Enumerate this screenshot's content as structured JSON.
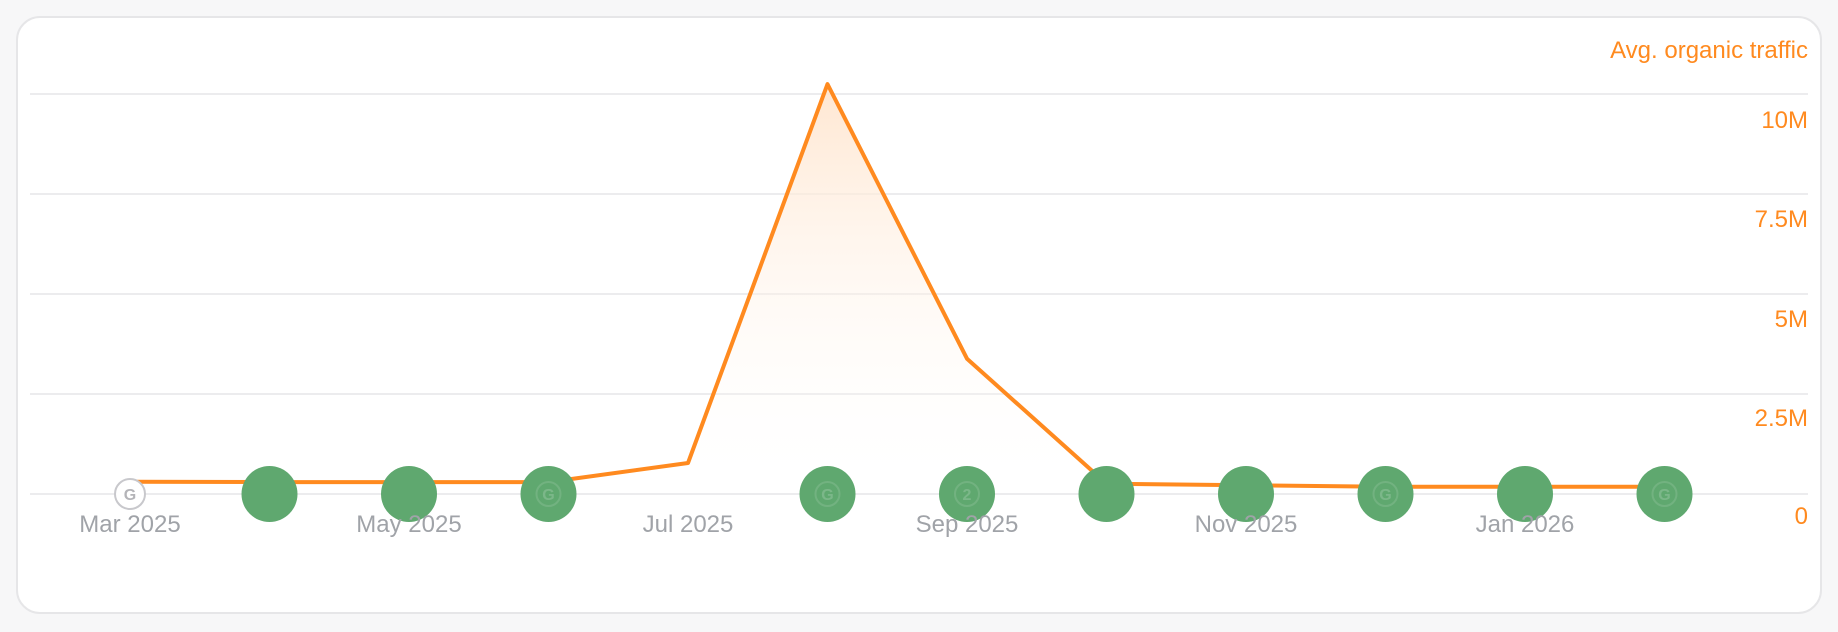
{
  "colors": {
    "line": "#ff8a1f",
    "fill": "#ffe4cc",
    "grid": "#ececee",
    "tick_x": "#a0a3a8",
    "marker_green": "#5fa86f",
    "marker_outline": "#c8c8cc"
  },
  "chart_data": {
    "type": "area",
    "series": [
      {
        "name": "Avg. organic traffic",
        "x": [
          "2025-03",
          "2025-04",
          "2025-05",
          "2025-06",
          "2025-07",
          "2025-08",
          "2025-09",
          "2025-10",
          "2025-11",
          "2025-12",
          "2026-01",
          "2026-02"
        ],
        "values": [
          0.31,
          0.3,
          0.3,
          0.3,
          0.78,
          10.3,
          3.4,
          0.26,
          0.22,
          0.18,
          0.18,
          0.18
        ]
      }
    ],
    "ylim": [
      0,
      10.5
    ],
    "y_unit": "M",
    "x_tick_labels": [
      "Mar 2025",
      "May 2025",
      "Jul 2025",
      "Sep 2025",
      "Nov 2025",
      "Jan 2026"
    ],
    "x_tick_positions": [
      "2025-03",
      "2025-05",
      "2025-07",
      "2025-09",
      "2025-11",
      "2026-01"
    ],
    "y_tick_labels": [
      "0",
      "2.5M",
      "5M",
      "7.5M",
      "10M"
    ],
    "y_tick_values": [
      0,
      2.5,
      5,
      7.5,
      10
    ],
    "legend": {
      "label": "Avg. organic traffic",
      "placement": "top-right"
    },
    "grid": true,
    "markers": [
      {
        "x": "2025-03",
        "style": "outline",
        "glyph": "G"
      },
      {
        "x": "2025-04",
        "style": "filled",
        "glyph": ""
      },
      {
        "x": "2025-05",
        "style": "filled",
        "glyph": ""
      },
      {
        "x": "2025-06",
        "style": "filled",
        "glyph": "G"
      },
      {
        "x": "2025-08",
        "style": "filled",
        "glyph": "G"
      },
      {
        "x": "2025-09",
        "style": "filled",
        "glyph": "2"
      },
      {
        "x": "2025-10",
        "style": "filled",
        "glyph": ""
      },
      {
        "x": "2025-11",
        "style": "filled",
        "glyph": ""
      },
      {
        "x": "2025-12",
        "style": "filled",
        "glyph": "G"
      },
      {
        "x": "2026-01",
        "style": "filled",
        "glyph": ""
      },
      {
        "x": "2026-02",
        "style": "filled",
        "glyph": "G"
      }
    ]
  }
}
